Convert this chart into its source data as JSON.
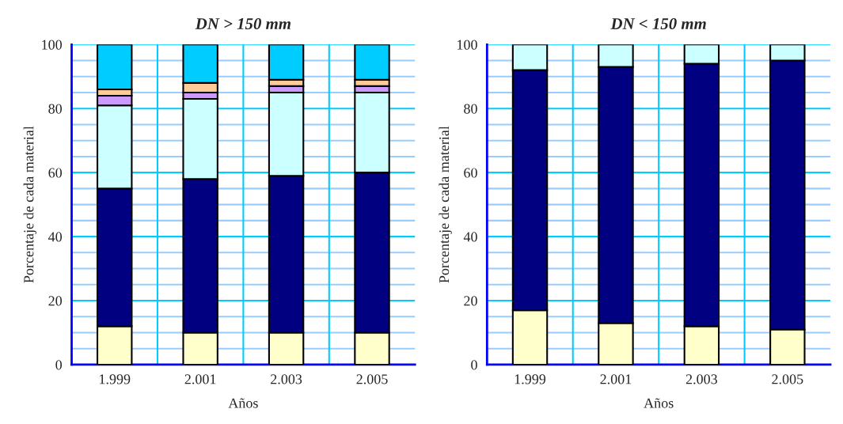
{
  "chart_data": [
    {
      "type": "bar",
      "stacked": true,
      "title": "DN > 150 mm",
      "xlabel": "Años",
      "ylabel": "Porcentaje de cada material",
      "categories": [
        "1.999",
        "2.001",
        "2.003",
        "2.005"
      ],
      "ylim": [
        0,
        100
      ],
      "yticks": [
        0,
        {
          "value": 5,
          "label": null
        },
        {
          "value": 10,
          "label": null
        },
        {
          "value": 15,
          "label": null
        },
        20,
        {
          "value": 25,
          "label": null
        },
        {
          "value": 30,
          "label": null
        },
        {
          "value": 35,
          "label": null
        },
        40,
        {
          "value": 45,
          "label": null
        },
        {
          "value": 50,
          "label": null
        },
        {
          "value": 55,
          "label": null
        },
        60,
        {
          "value": 65,
          "label": null
        },
        {
          "value": 70,
          "label": null
        },
        {
          "value": 75,
          "label": null
        },
        80,
        {
          "value": 85,
          "label": null
        },
        {
          "value": 90,
          "label": null
        },
        {
          "value": 95,
          "label": null
        },
        100
      ],
      "grid": true,
      "legend": false,
      "series": [
        {
          "color": "#ffffcc",
          "values": [
            12,
            10,
            10,
            10
          ]
        },
        {
          "color": "#000080",
          "values": [
            43,
            48,
            49,
            50
          ]
        },
        {
          "color": "#ccffff",
          "values": [
            26,
            25,
            26,
            25
          ]
        },
        {
          "color": "#cc99ff",
          "values": [
            3,
            2,
            2,
            2
          ]
        },
        {
          "color": "#ffcc99",
          "values": [
            2,
            3,
            2,
            2
          ]
        },
        {
          "color": "#00ccff",
          "values": [
            14,
            12,
            11,
            11
          ]
        }
      ]
    },
    {
      "type": "bar",
      "stacked": true,
      "title": "DN < 150 mm",
      "xlabel": "Años",
      "ylabel": "Porcentaje de cada material",
      "categories": [
        "1.999",
        "2.001",
        "2.003",
        "2.005"
      ],
      "ylim": [
        0,
        100
      ],
      "yticks": [
        0,
        {
          "value": 5,
          "label": null
        },
        {
          "value": 10,
          "label": null
        },
        {
          "value": 15,
          "label": null
        },
        20,
        {
          "value": 25,
          "label": null
        },
        {
          "value": 30,
          "label": null
        },
        {
          "value": 35,
          "label": null
        },
        40,
        {
          "value": 45,
          "label": null
        },
        {
          "value": 50,
          "label": null
        },
        {
          "value": 55,
          "label": null
        },
        60,
        {
          "value": 65,
          "label": null
        },
        {
          "value": 70,
          "label": null
        },
        {
          "value": 75,
          "label": null
        },
        80,
        {
          "value": 85,
          "label": null
        },
        {
          "value": 90,
          "label": null
        },
        {
          "value": 95,
          "label": null
        },
        100
      ],
      "grid": true,
      "legend": false,
      "series": [
        {
          "color": "#ffffcc",
          "values": [
            17,
            13,
            12,
            11
          ]
        },
        {
          "color": "#000080",
          "values": [
            75,
            80,
            82,
            84
          ]
        },
        {
          "color": "#ccffff",
          "values": [
            8,
            7,
            6,
            5
          ]
        }
      ]
    }
  ]
}
